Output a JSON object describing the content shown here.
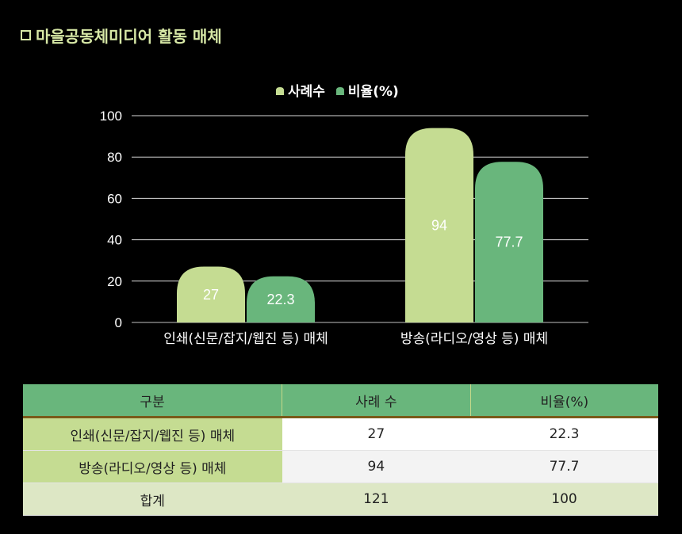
{
  "title": "마을공동체미디어 활동 매체",
  "chart_data": {
    "type": "bar",
    "categories": [
      "인쇄(신문/잡지/웹진 등) 매체",
      "방송(라디오/영상 등) 매체"
    ],
    "series": [
      {
        "name": "사례수",
        "values": [
          27,
          94
        ],
        "color": "#c5dc92"
      },
      {
        "name": "비율(%)",
        "values": [
          22.3,
          77.7
        ],
        "color": "#69b67c"
      }
    ],
    "ylim": [
      0,
      100
    ],
    "yticks": [
      0,
      20,
      40,
      60,
      80,
      100
    ],
    "grid": true,
    "legend": "top-center",
    "xlabel": "",
    "ylabel": ""
  },
  "table": {
    "headers": [
      "구분",
      "사례 수",
      "비율(%)"
    ],
    "rows": [
      [
        "인쇄(신문/잡지/웹진 등) 매체",
        "27",
        "22.3"
      ],
      [
        "방송(라디오/영상 등) 매체",
        "94",
        "77.7"
      ]
    ],
    "total": [
      "합계",
      "121",
      "100"
    ]
  }
}
